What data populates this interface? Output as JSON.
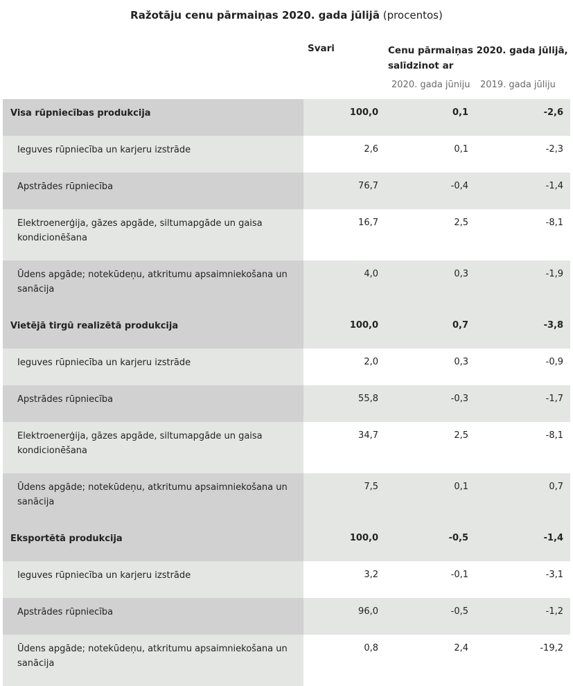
{
  "title": {
    "main": "Ražotāju cenu pārmaiņas 2020. gada jūlijā",
    "unit": "(procentos)"
  },
  "header": {
    "weights": "Svari",
    "change_line1": "Cenu pārmaiņas 2020. gada jūlijā,",
    "change_line2": "salīdzinot ar",
    "sub_month": "2020. gada jūniju",
    "sub_year": "2019. gada jūliju"
  },
  "rows": [
    {
      "label": "Visa rūpniecības produkcija",
      "weight": "100,0",
      "month": "0,1",
      "year": "-2,6"
    },
    {
      "label": "Ieguves rūpniecība un karjeru izstrāde",
      "weight": "2,6",
      "month": "0,1",
      "year": "-2,3"
    },
    {
      "label": "Apstrādes rūpniecība",
      "weight": "76,7",
      "month": "-0,4",
      "year": "-1,4"
    },
    {
      "label": "Elektroenerģija, gāzes apgāde, siltumapgāde un gaisa kondicionēšana",
      "weight": "16,7",
      "month": "2,5",
      "year": "-8,1"
    },
    {
      "label": "Ūdens apgāde; notekūdeņu, atkritumu apsaimniekošana un sanācija",
      "weight": "4,0",
      "month": "0,3",
      "year": "-1,9"
    },
    {
      "label": "Vietējā tirgū realizētā produkcija",
      "weight": "100,0",
      "month": "0,7",
      "year": "-3,8"
    },
    {
      "label": "Ieguves rūpniecība un karjeru izstrāde",
      "weight": "2,0",
      "month": "0,3",
      "year": "-0,9"
    },
    {
      "label": "Apstrādes rūpniecība",
      "weight": "55,8",
      "month": "-0,3",
      "year": "-1,7"
    },
    {
      "label": "Elektroenerģija, gāzes apgāde, siltumapgāde un gaisa kondicionēšana",
      "weight": "34,7",
      "month": "2,5",
      "year": "-8,1"
    },
    {
      "label": "Ūdens apgāde; notekūdeņu, atkritumu apsaimniekošana un sanācija",
      "weight": "7,5",
      "month": "0,1",
      "year": "0,7"
    },
    {
      "label": "Eksportētā produkcija",
      "weight": "100,0",
      "month": "-0,5",
      "year": "-1,4"
    },
    {
      "label": "Ieguves rūpniecība un karjeru izstrāde",
      "weight": "3,2",
      "month": "-0,1",
      "year": "-3,1"
    },
    {
      "label": "Apstrādes rūpniecība",
      "weight": "96,0",
      "month": "-0,5",
      "year": "-1,2"
    },
    {
      "label": "Ūdens apgāde; notekūdeņu, atkritumu apsaimniekošana un sanācija",
      "weight": "0,8",
      "month": "2,4",
      "year": "-19,2"
    }
  ]
}
